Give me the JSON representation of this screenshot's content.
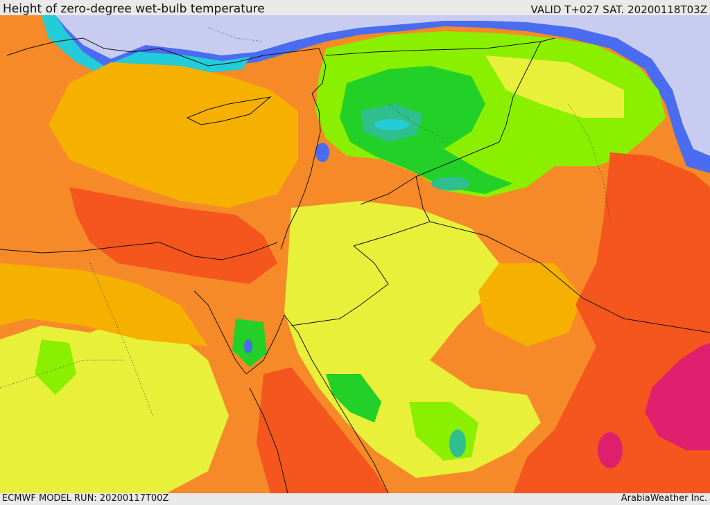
{
  "header": {
    "title": "Height of zero-degree wet-bulb temperature",
    "valid": "VALID T+027 SAT. 20200118T03Z"
  },
  "footer": {
    "model_run": "ECMWF MODEL RUN: 20200117T00Z",
    "credit": "ArabiaWeather Inc."
  },
  "palette": {
    "sea_cold": "#c8ccf0",
    "blue": "#4a6cf0",
    "cyan": "#22ccd8",
    "teal": "#2fbf8f",
    "green": "#22d028",
    "lime": "#8af000",
    "yellow": "#e8f03a",
    "gold": "#f6b000",
    "orange": "#f68a28",
    "red_orange": "#f4561e",
    "magenta": "#e0206e",
    "border": "#111111"
  }
}
